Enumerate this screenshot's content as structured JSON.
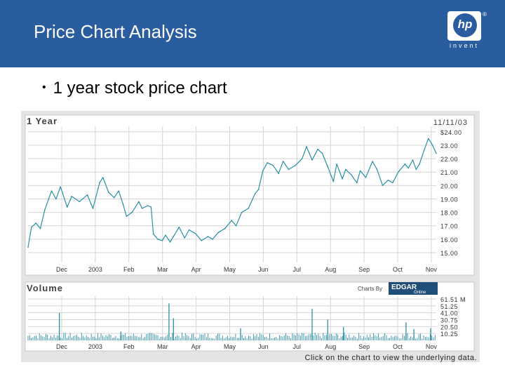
{
  "slide": {
    "title": "Price Chart Analysis",
    "bullet": "1 year stock price chart",
    "logo_mark": "hp",
    "logo_text": "invent",
    "logo_reg": "®"
  },
  "colors": {
    "banner": "#2a5d9f",
    "line": "#2a8fa5",
    "volume": "#2a8fa5",
    "panel_bg": "#ffffff",
    "frame_bg": "#e4e4e4",
    "grid": "#d4d4d4"
  },
  "chart_data": [
    {
      "type": "line",
      "title": "1 Year",
      "date_label": "11/11/03",
      "x_ticks": [
        "Dec",
        "2003",
        "Feb",
        "Mar",
        "Apr",
        "May",
        "Jun",
        "Jul",
        "Aug",
        "Sep",
        "Oct",
        "Nov"
      ],
      "y_ticks": [
        "$24.00",
        "23.00",
        "22.00",
        "21.00",
        "20.00",
        "19.00",
        "18.00",
        "17.00",
        "16.00",
        "15.00"
      ],
      "ylim": [
        15,
        24.2
      ],
      "x_range": [
        "2002-11-11",
        "2003-11-11"
      ],
      "series": [
        {
          "points": [
            [
              "2002-11-11",
              15.4
            ],
            [
              "2002-11-14",
              16.9
            ],
            [
              "2002-11-18",
              17.2
            ],
            [
              "2002-11-22",
              16.8
            ],
            [
              "2002-11-26",
              18.2
            ],
            [
              "2002-12-02",
              19.6
            ],
            [
              "2002-12-06",
              19.0
            ],
            [
              "2002-12-10",
              19.9
            ],
            [
              "2002-12-16",
              18.4
            ],
            [
              "2002-12-20",
              19.2
            ],
            [
              "2002-12-27",
              18.8
            ],
            [
              "2003-01-03",
              19.3
            ],
            [
              "2003-01-08",
              18.3
            ],
            [
              "2003-01-14",
              20.2
            ],
            [
              "2003-01-17",
              20.6
            ],
            [
              "2003-01-22",
              19.5
            ],
            [
              "2003-01-27",
              19.1
            ],
            [
              "2003-01-31",
              19.6
            ],
            [
              "2003-02-04",
              18.6
            ],
            [
              "2003-02-07",
              17.7
            ],
            [
              "2003-02-12",
              18.0
            ],
            [
              "2003-02-18",
              18.8
            ],
            [
              "2003-02-21",
              18.3
            ],
            [
              "2003-02-26",
              18.5
            ],
            [
              "2003-03-01",
              18.4
            ],
            [
              "2003-03-03",
              16.4
            ],
            [
              "2003-03-07",
              16.0
            ],
            [
              "2003-03-11",
              15.9
            ],
            [
              "2003-03-14",
              16.3
            ],
            [
              "2003-03-18",
              15.8
            ],
            [
              "2003-03-21",
              16.2
            ],
            [
              "2003-03-26",
              16.9
            ],
            [
              "2003-03-31",
              16.1
            ],
            [
              "2003-04-04",
              16.7
            ],
            [
              "2003-04-10",
              16.4
            ],
            [
              "2003-04-15",
              15.9
            ],
            [
              "2003-04-21",
              16.2
            ],
            [
              "2003-04-25",
              16.0
            ],
            [
              "2003-04-30",
              16.5
            ],
            [
              "2003-05-06",
              16.8
            ],
            [
              "2003-05-12",
              17.4
            ],
            [
              "2003-05-16",
              17.0
            ],
            [
              "2003-05-21",
              18.0
            ],
            [
              "2003-05-27",
              18.3
            ],
            [
              "2003-06-02",
              19.4
            ],
            [
              "2003-06-05",
              19.7
            ],
            [
              "2003-06-09",
              21.1
            ],
            [
              "2003-06-13",
              21.7
            ],
            [
              "2003-06-18",
              21.5
            ],
            [
              "2003-06-23",
              20.9
            ],
            [
              "2003-06-27",
              21.8
            ],
            [
              "2003-07-02",
              21.2
            ],
            [
              "2003-07-08",
              21.5
            ],
            [
              "2003-07-14",
              22.0
            ],
            [
              "2003-07-18",
              22.9
            ],
            [
              "2003-07-23",
              21.9
            ],
            [
              "2003-07-28",
              22.7
            ],
            [
              "2003-08-01",
              22.4
            ],
            [
              "2003-08-06",
              21.4
            ],
            [
              "2003-08-11",
              20.3
            ],
            [
              "2003-08-14",
              21.6
            ],
            [
              "2003-08-19",
              20.5
            ],
            [
              "2003-08-22",
              21.2
            ],
            [
              "2003-08-27",
              20.8
            ],
            [
              "2003-09-01",
              20.2
            ],
            [
              "2003-09-04",
              21.1
            ],
            [
              "2003-09-09",
              20.6
            ],
            [
              "2003-09-15",
              21.8
            ],
            [
              "2003-09-19",
              21.2
            ],
            [
              "2003-09-24",
              20.0
            ],
            [
              "2003-09-29",
              20.4
            ],
            [
              "2003-10-03",
              20.2
            ],
            [
              "2003-10-08",
              21.0
            ],
            [
              "2003-10-14",
              21.6
            ],
            [
              "2003-10-17",
              21.3
            ],
            [
              "2003-10-21",
              21.9
            ],
            [
              "2003-10-24",
              21.2
            ],
            [
              "2003-10-27",
              21.6
            ],
            [
              "2003-10-31",
              22.6
            ],
            [
              "2003-11-04",
              23.5
            ],
            [
              "2003-11-07",
              23.1
            ],
            [
              "2003-11-11",
              22.4
            ]
          ]
        }
      ]
    },
    {
      "type": "bar",
      "title": "Volume",
      "credit_prefix": "Charts By",
      "credit_logo": "EDGAR",
      "credit_logo_sub": "Online",
      "y_ticks": [
        "61.51 M",
        "51.25",
        "41.00",
        "30.75",
        "20.50",
        "10.25"
      ],
      "x_ticks": [
        "Dec",
        "2003",
        "Feb",
        "Mar",
        "Apr",
        "May",
        "Jun",
        "Jul",
        "Aug",
        "Sep",
        "Oct",
        "Nov"
      ],
      "ylim": [
        0,
        61.51
      ],
      "x_range": [
        "2002-11-11",
        "2003-11-11"
      ],
      "spikes": [
        [
          "2002-12-09",
          41.0
        ],
        [
          "2003-02-02",
          13.0
        ],
        [
          "2003-03-17",
          55.0
        ],
        [
          "2003-03-21",
          33.0
        ],
        [
          "2003-05-20",
          18.0
        ],
        [
          "2003-07-23",
          47.0
        ],
        [
          "2003-08-06",
          31.0
        ],
        [
          "2003-08-20",
          20.0
        ],
        [
          "2003-10-15",
          27.0
        ],
        [
          "2003-10-22",
          17.0
        ],
        [
          "2003-11-06",
          18.0
        ]
      ],
      "footer": "Click on the chart to view the underlying data."
    }
  ]
}
